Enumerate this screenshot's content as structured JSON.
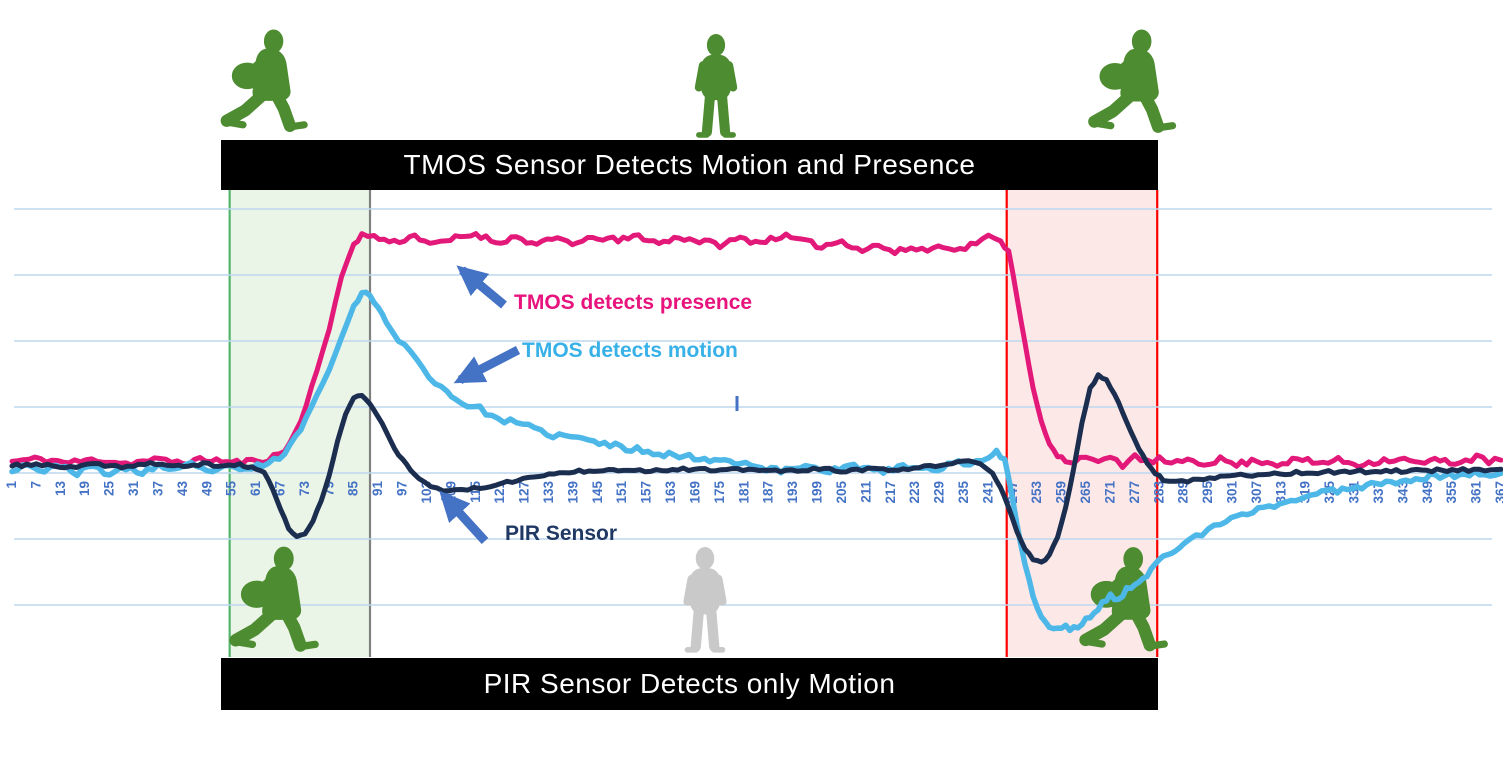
{
  "banners": {
    "top": "TMOS Sensor Detects Motion and Presence",
    "bottom": "PIR Sensor Detects only Motion"
  },
  "annotations": {
    "presence": {
      "label": "TMOS detects presence",
      "color": "#E8137C"
    },
    "motion": {
      "label": "TMOS detects motion",
      "color": "#38B1E8"
    },
    "pir": {
      "label": "PIR Sensor",
      "color": "#1F3864"
    }
  },
  "colors": {
    "arrow": "#4472C4",
    "x_label": "#4472C4",
    "gridline": "#BDD7EE",
    "walking_person_green": "#4D8C30",
    "standing_person_green": "#4D8C30",
    "standing_person_gray": "#C9C9C9",
    "banner_bg": "#000000",
    "banner_text": "#FFFFFF"
  },
  "chart_data": {
    "type": "line",
    "title": "",
    "xlabel": "",
    "ylabel": "",
    "x_range": [
      1,
      367
    ],
    "ylim": [
      -2.8,
      4.2
    ],
    "grid": "horizontal",
    "gridline_units": [
      4,
      3,
      2,
      1,
      0,
      -1,
      -2
    ],
    "baseline_value": 0,
    "legend_position": "inline-callouts",
    "x_labels": [
      "1",
      "7",
      "13",
      "19",
      "25",
      "31",
      "37",
      "43",
      "49",
      "55",
      "61",
      "67",
      "73",
      "79",
      "85",
      "91",
      "97",
      "103",
      "109",
      "115",
      "121",
      "127",
      "133",
      "139",
      "145",
      "151",
      "157",
      "163",
      "169",
      "175",
      "181",
      "187",
      "193",
      "199",
      "205",
      "211",
      "217",
      "223",
      "229",
      "235",
      "241",
      "247",
      "253",
      "259",
      "265",
      "271",
      "277",
      "283",
      "289",
      "295",
      "301",
      "307",
      "313",
      "319",
      "325",
      "331",
      "337",
      "343",
      "349",
      "355",
      "361",
      "367"
    ],
    "regions": [
      {
        "name": "person-enters",
        "x_start": 54.5,
        "x_end": 89,
        "fill": "rgba(214,233,208,0.5)",
        "border_left": "#52B46B",
        "border_right": "#808080"
      },
      {
        "name": "person-leaves",
        "x_start": 245.5,
        "x_end": 282.5,
        "fill": "rgba(250,205,205,0.45)",
        "border_left": "#FF0000",
        "border_right": "#FF0000"
      }
    ],
    "series": [
      {
        "name": "TMOS detects presence",
        "color": "#E3197A",
        "width": 5,
        "noise": 0.05,
        "seed": 11,
        "points": [
          [
            1,
            0.1
          ],
          [
            8,
            0.14
          ],
          [
            15,
            0.08
          ],
          [
            22,
            0.13
          ],
          [
            29,
            0.07
          ],
          [
            36,
            0.12
          ],
          [
            43,
            0.09
          ],
          [
            50,
            0.13
          ],
          [
            55,
            0.08
          ],
          [
            60,
            0.1
          ],
          [
            64,
            0.14
          ],
          [
            68,
            0.25
          ],
          [
            72,
            0.7
          ],
          [
            76,
            1.5
          ],
          [
            79,
            2.1
          ],
          [
            82,
            2.9
          ],
          [
            85,
            3.4
          ],
          [
            87,
            3.53
          ],
          [
            90,
            3.5
          ],
          [
            95,
            3.42
          ],
          [
            100,
            3.52
          ],
          [
            105,
            3.38
          ],
          [
            110,
            3.48
          ],
          [
            115,
            3.55
          ],
          [
            120,
            3.42
          ],
          [
            125,
            3.5
          ],
          [
            130,
            3.38
          ],
          [
            135,
            3.48
          ],
          [
            140,
            3.4
          ],
          [
            145,
            3.5
          ],
          [
            150,
            3.44
          ],
          [
            155,
            3.52
          ],
          [
            160,
            3.4
          ],
          [
            165,
            3.5
          ],
          [
            170,
            3.44
          ],
          [
            175,
            3.38
          ],
          [
            180,
            3.48
          ],
          [
            185,
            3.42
          ],
          [
            190,
            3.52
          ],
          [
            195,
            3.44
          ],
          [
            200,
            3.36
          ],
          [
            205,
            3.44
          ],
          [
            210,
            3.3
          ],
          [
            214,
            3.38
          ],
          [
            218,
            3.26
          ],
          [
            222,
            3.34
          ],
          [
            226,
            3.3
          ],
          [
            230,
            3.38
          ],
          [
            234,
            3.3
          ],
          [
            238,
            3.42
          ],
          [
            241,
            3.5
          ],
          [
            244,
            3.42
          ],
          [
            246,
            3.3
          ],
          [
            248,
            2.6
          ],
          [
            250,
            1.9
          ],
          [
            252,
            1.2
          ],
          [
            254,
            0.7
          ],
          [
            256,
            0.35
          ],
          [
            258,
            0.18
          ],
          [
            260,
            0.12
          ],
          [
            262,
            0.1
          ],
          [
            265,
            0.2
          ],
          [
            268,
            0.06
          ],
          [
            271,
            0.16
          ],
          [
            274,
            0.04
          ],
          [
            277,
            0.18
          ],
          [
            280,
            0.08
          ],
          [
            283,
            0.14
          ],
          [
            286,
            0.04
          ],
          [
            290,
            0.14
          ],
          [
            294,
            0.07
          ],
          [
            298,
            0.13
          ],
          [
            302,
            0.05
          ],
          [
            307,
            0.12
          ],
          [
            312,
            0.06
          ],
          [
            317,
            0.13
          ],
          [
            322,
            0.07
          ],
          [
            327,
            0.12
          ],
          [
            332,
            0.05
          ],
          [
            337,
            0.11
          ],
          [
            342,
            0.14
          ],
          [
            347,
            0.07
          ],
          [
            352,
            0.12
          ],
          [
            357,
            0.08
          ],
          [
            361,
            0.16
          ],
          [
            364,
            0.1
          ],
          [
            367,
            0.12
          ]
        ]
      },
      {
        "name": "TMOS detects motion",
        "color": "#4DB8E8",
        "width": 5.5,
        "noise": 0.05,
        "seed": 23,
        "points": [
          [
            1,
            -0.02
          ],
          [
            5,
            0.06
          ],
          [
            9,
            -0.06
          ],
          [
            13,
            0.05
          ],
          [
            17,
            -0.08
          ],
          [
            21,
            0.03
          ],
          [
            25,
            -0.1
          ],
          [
            29,
            0
          ],
          [
            33,
            -0.07
          ],
          [
            37,
            0.04
          ],
          [
            41,
            -0.05
          ],
          [
            45,
            0.05
          ],
          [
            49,
            -0.06
          ],
          [
            53,
            0.03
          ],
          [
            57,
            -0.05
          ],
          [
            60,
            0
          ],
          [
            64,
            0.08
          ],
          [
            68,
            0.2
          ],
          [
            72,
            0.6
          ],
          [
            76,
            1.1
          ],
          [
            79,
            1.5
          ],
          [
            82,
            2.0
          ],
          [
            85,
            2.45
          ],
          [
            87,
            2.65
          ],
          [
            89,
            2.6
          ],
          [
            91,
            2.45
          ],
          [
            93,
            2.2
          ],
          [
            96,
            1.95
          ],
          [
            99,
            1.75
          ],
          [
            102,
            1.5
          ],
          [
            105,
            1.3
          ],
          [
            108,
            1.15
          ],
          [
            110,
            1.05
          ],
          [
            113,
            0.95
          ],
          [
            116,
            0.9
          ],
          [
            119,
            0.78
          ],
          [
            122,
            0.72
          ],
          [
            125,
            0.68
          ],
          [
            128,
            0.62
          ],
          [
            131,
            0.55
          ],
          [
            134,
            0.5
          ],
          [
            137,
            0.48
          ],
          [
            140,
            0.45
          ],
          [
            144,
            0.4
          ],
          [
            148,
            0.35
          ],
          [
            152,
            0.3
          ],
          [
            156,
            0.27
          ],
          [
            160,
            0.23
          ],
          [
            165,
            0.18
          ],
          [
            170,
            0.15
          ],
          [
            175,
            0.12
          ],
          [
            180,
            0.1
          ],
          [
            184,
            0.02
          ],
          [
            190,
            -0.05
          ],
          [
            196,
            0.04
          ],
          [
            202,
            -0.04
          ],
          [
            208,
            0.03
          ],
          [
            214,
            -0.06
          ],
          [
            220,
            0.02
          ],
          [
            226,
            -0.03
          ],
          [
            231,
            0.04
          ],
          [
            235,
            0.08
          ],
          [
            238,
            0.08
          ],
          [
            241,
            0.18
          ],
          [
            243,
            0.26
          ],
          [
            245,
            0.12
          ],
          [
            246,
            -0.15
          ],
          [
            247,
            -0.5
          ],
          [
            248,
            -0.85
          ],
          [
            250,
            -1.45
          ],
          [
            252,
            -1.95
          ],
          [
            254,
            -2.25
          ],
          [
            256,
            -2.4
          ],
          [
            258,
            -2.45
          ],
          [
            260,
            -2.38
          ],
          [
            261,
            -2.45
          ],
          [
            263,
            -2.42
          ],
          [
            265,
            -2.3
          ],
          [
            267,
            -2.2
          ],
          [
            269,
            -2.05
          ],
          [
            271,
            -1.95
          ],
          [
            273,
            -1.98
          ],
          [
            275,
            -1.85
          ],
          [
            277,
            -1.78
          ],
          [
            279,
            -1.7
          ],
          [
            281,
            -1.55
          ],
          [
            283,
            -1.35
          ],
          [
            285,
            -1.3
          ],
          [
            287,
            -1.22
          ],
          [
            289,
            -1.15
          ],
          [
            292,
            -1.05
          ],
          [
            295,
            -0.95
          ],
          [
            298,
            -0.85
          ],
          [
            302,
            -0.75
          ],
          [
            306,
            -0.65
          ],
          [
            310,
            -0.58
          ],
          [
            314,
            -0.52
          ],
          [
            318,
            -0.45
          ],
          [
            323,
            -0.38
          ],
          [
            328,
            -0.32
          ],
          [
            334,
            -0.26
          ],
          [
            340,
            -0.2
          ],
          [
            346,
            -0.16
          ],
          [
            352,
            -0.12
          ],
          [
            358,
            -0.1
          ],
          [
            363,
            -0.08
          ],
          [
            367,
            -0.08
          ]
        ]
      },
      {
        "name": "PIR Sensor",
        "color": "#1B2E4F",
        "width": 5,
        "noise": 0.025,
        "seed": 37,
        "points": [
          [
            1,
            0.03
          ],
          [
            7,
            0.06
          ],
          [
            14,
            0
          ],
          [
            21,
            0.05
          ],
          [
            28,
            0.02
          ],
          [
            35,
            0.07
          ],
          [
            42,
            0.02
          ],
          [
            48,
            0.06
          ],
          [
            53,
            0.03
          ],
          [
            57,
            0.05
          ],
          [
            59,
            0.02
          ],
          [
            61,
            0
          ],
          [
            63,
            -0.08
          ],
          [
            65,
            -0.3
          ],
          [
            67,
            -0.62
          ],
          [
            69,
            -0.92
          ],
          [
            71,
            -1.05
          ],
          [
            73,
            -1.0
          ],
          [
            75,
            -0.8
          ],
          [
            77,
            -0.5
          ],
          [
            79,
            -0.1
          ],
          [
            81,
            0.4
          ],
          [
            83,
            0.82
          ],
          [
            85,
            1.05
          ],
          [
            87,
            1.1
          ],
          [
            89,
            0.98
          ],
          [
            91,
            0.78
          ],
          [
            93,
            0.55
          ],
          [
            95,
            0.3
          ],
          [
            97,
            0.12
          ],
          [
            99,
            -0.02
          ],
          [
            101,
            -0.15
          ],
          [
            104,
            -0.27
          ],
          [
            107,
            -0.33
          ],
          [
            110,
            -0.35
          ],
          [
            113,
            -0.33
          ],
          [
            116,
            -0.3
          ],
          [
            120,
            -0.25
          ],
          [
            124,
            -0.2
          ],
          [
            128,
            -0.15
          ],
          [
            133,
            -0.1
          ],
          [
            138,
            -0.06
          ],
          [
            144,
            -0.03
          ],
          [
            150,
            -0.02
          ],
          [
            158,
            -0.04
          ],
          [
            166,
            -0.01
          ],
          [
            174,
            -0.04
          ],
          [
            182,
            -0.02
          ],
          [
            190,
            -0.05
          ],
          [
            198,
            -0.02
          ],
          [
            206,
            -0.04
          ],
          [
            214,
            -0.02
          ],
          [
            220,
            -0.03
          ],
          [
            224,
            0
          ],
          [
            228,
            0.04
          ],
          [
            232,
            0.07
          ],
          [
            236,
            0.1
          ],
          [
            239,
            0.06
          ],
          [
            242,
            -0.08
          ],
          [
            244,
            -0.3
          ],
          [
            246,
            -0.6
          ],
          [
            248,
            -0.95
          ],
          [
            250,
            -1.22
          ],
          [
            252,
            -1.4
          ],
          [
            254,
            -1.44
          ],
          [
            256,
            -1.32
          ],
          [
            258,
            -1.05
          ],
          [
            260,
            -0.6
          ],
          [
            262,
            0
          ],
          [
            264,
            0.68
          ],
          [
            266,
            1.2
          ],
          [
            268,
            1.4
          ],
          [
            270,
            1.33
          ],
          [
            272,
            1.12
          ],
          [
            274,
            0.85
          ],
          [
            276,
            0.55
          ],
          [
            278,
            0.3
          ],
          [
            280,
            0.08
          ],
          [
            282,
            -0.08
          ],
          [
            284,
            -0.17
          ],
          [
            287,
            -0.2
          ],
          [
            290,
            -0.19
          ],
          [
            294,
            -0.16
          ],
          [
            298,
            -0.13
          ],
          [
            303,
            -0.11
          ],
          [
            310,
            -0.09
          ],
          [
            318,
            -0.07
          ],
          [
            326,
            -0.06
          ],
          [
            335,
            -0.05
          ],
          [
            345,
            -0.04
          ],
          [
            355,
            -0.03
          ],
          [
            367,
            -0.02
          ]
        ]
      }
    ]
  }
}
